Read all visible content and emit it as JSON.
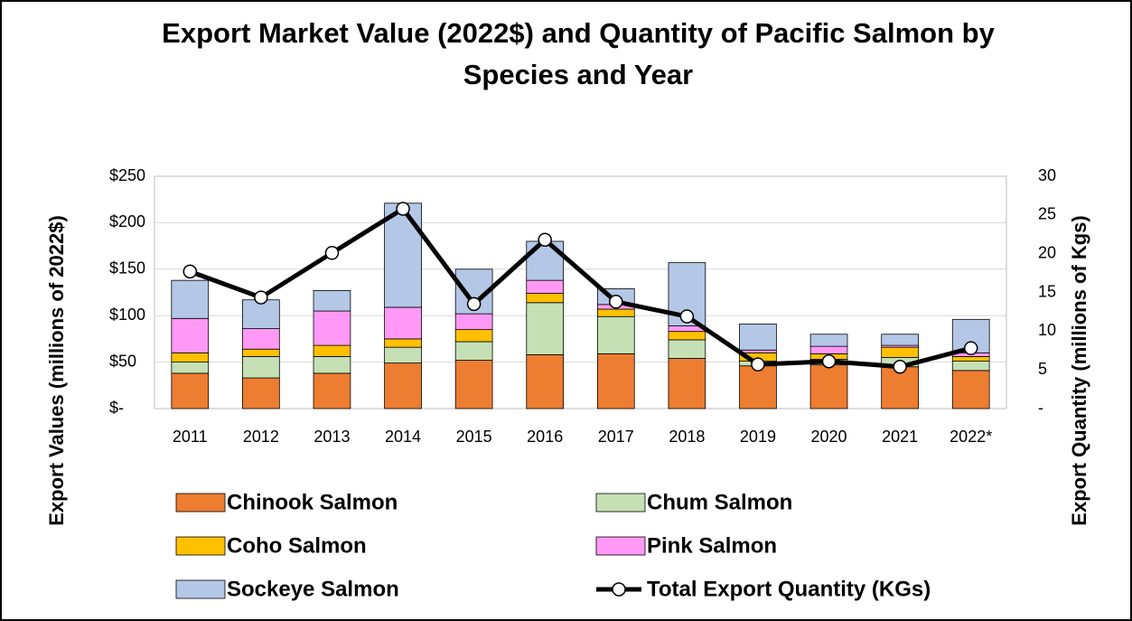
{
  "chart_data": {
    "type": "bar",
    "title": "Export Market Value (2022$) and Quantity of Pacific Salmon by Species and Year",
    "y_label": "Export Values (millions of 2022$)",
    "y2_label": "Export Quantity (millions of Kgs)",
    "stacked": true,
    "grid": true,
    "categories": [
      "2011",
      "2012",
      "2013",
      "2014",
      "2015",
      "2016",
      "2017",
      "2018",
      "2019",
      "2020",
      "2021",
      "2022*"
    ],
    "ylim": [
      0,
      250
    ],
    "yticks": [
      {
        "value": 0,
        "label": "$-"
      },
      {
        "value": 50,
        "label": "$50"
      },
      {
        "value": 100,
        "label": "$100"
      },
      {
        "value": 150,
        "label": "$150"
      },
      {
        "value": 200,
        "label": "$200"
      },
      {
        "value": 250,
        "label": "$250"
      }
    ],
    "y2lim": [
      0,
      30
    ],
    "y2ticks": [
      {
        "value": 0,
        "label": "-"
      },
      5,
      10,
      15,
      20,
      25,
      30
    ],
    "series": [
      {
        "name": "Chinook Salmon",
        "color": "#ed7d31",
        "values": [
          38,
          33,
          38,
          49,
          52,
          58,
          59,
          54,
          46,
          47,
          45,
          41
        ]
      },
      {
        "name": "Chum Salmon",
        "color": "#c5e0b4",
        "values": [
          12,
          23,
          18,
          17,
          20,
          56,
          40,
          20,
          5,
          6,
          10,
          10
        ]
      },
      {
        "name": "Coho Salmon",
        "color": "#ffc000",
        "values": [
          10,
          8,
          12,
          9,
          13,
          10,
          8,
          9,
          9,
          6,
          11,
          5
        ]
      },
      {
        "name": "Pink Salmon",
        "color": "#ff99f5",
        "values": [
          37,
          22,
          37,
          34,
          17,
          14,
          5,
          6,
          3,
          8,
          2,
          4
        ]
      },
      {
        "name": "Sockeye Salmon",
        "color": "#b4c7e7",
        "values": [
          41,
          31,
          22,
          112,
          48,
          42,
          17,
          68,
          28,
          13,
          12,
          36
        ]
      },
      {
        "name": "Total Export Quantity (KGs)",
        "color": "#000000",
        "type": "line",
        "axis": "y2",
        "values": [
          17.7,
          14.35,
          20.1,
          25.8,
          13.5,
          21.8,
          13.8,
          11.9,
          5.7,
          6.1,
          5.4,
          7.8
        ]
      }
    ]
  }
}
